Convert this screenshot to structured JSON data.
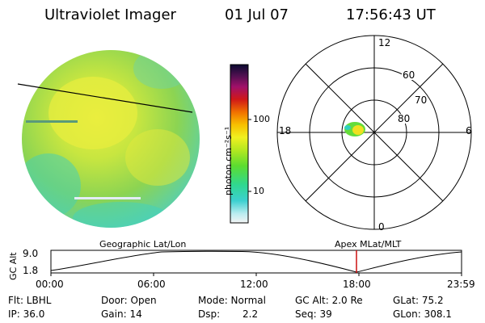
{
  "header": {
    "title": "Ultraviolet Imager",
    "date": "01 Jul 07",
    "time": "17:56:43 UT"
  },
  "colorbar": {
    "label": "photon cm⁻²s⁻¹",
    "ticks": [
      "100",
      "10"
    ]
  },
  "polar": {
    "clock_labels": [
      "12",
      "18",
      "6",
      "0"
    ],
    "lat_labels": [
      "60",
      "70",
      "80"
    ]
  },
  "orbit": {
    "axis_label": "GC Alt",
    "y_ticks": [
      "9.0",
      "1.8"
    ],
    "left_title": "Geographic Lat/Lon",
    "right_title": "Apex MLat/MLT",
    "time_ticks": [
      "00:00",
      "06:00",
      "12:00",
      "18:00",
      "23:59"
    ],
    "current_fraction": 0.747
  },
  "status": {
    "flt": "Flt: LBHL",
    "ip": "IP: 36.0",
    "door": "Door: Open",
    "gain": "Gain: 14",
    "mode": "Mode: Normal",
    "dsp": "Dsp:",
    "dsp_value": "2.2",
    "gc_alt": "GC Alt: 2.0 Re",
    "seq": "Seq: 39",
    "glat": "GLat:  75.2",
    "glon": "GLon: 308.1"
  },
  "colors": {
    "image_base": "#9ed84a",
    "image_yellow": "#e8ec3c",
    "image_cyan": "#38d6c8",
    "aurora_green": "#64dc3a",
    "aurora_yellow": "#f0e020",
    "marker_red": "#cc1111"
  }
}
